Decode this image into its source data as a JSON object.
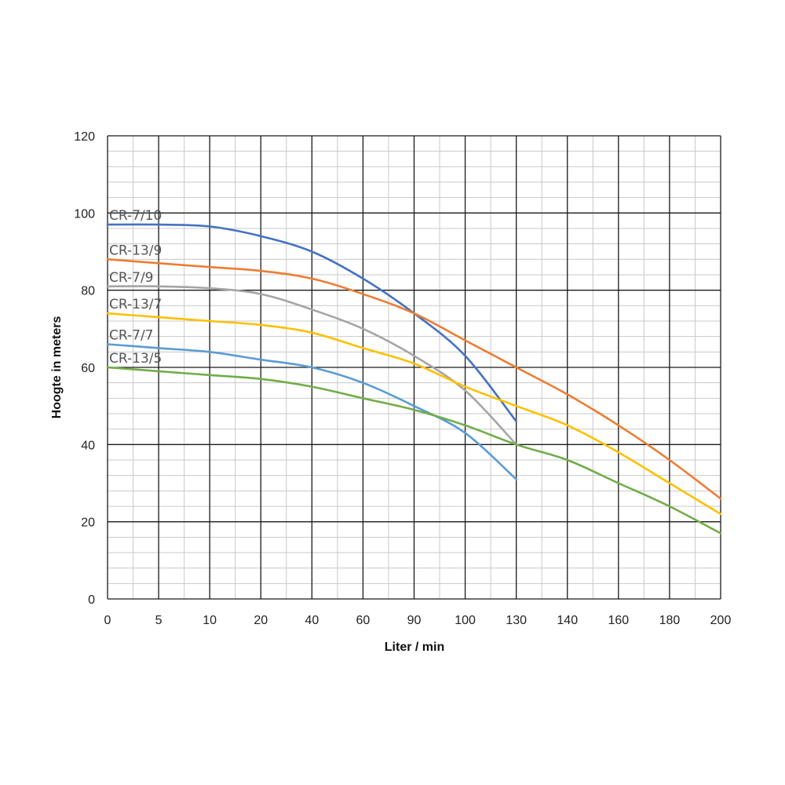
{
  "chart_data": {
    "type": "line",
    "title": "",
    "xlabel": "Liter / min",
    "ylabel": "Hoogte in meters",
    "x_categories": [
      "0",
      "5",
      "10",
      "20",
      "40",
      "60",
      "90",
      "100",
      "130",
      "140",
      "160",
      "180",
      "200"
    ],
    "ylim": [
      0,
      120
    ],
    "y_ticks": [
      "0",
      "20",
      "40",
      "60",
      "80",
      "100",
      "120"
    ],
    "grid": true,
    "legend": "inline labels at left",
    "series": [
      {
        "name": "CR-7/10",
        "color": "#4472C4",
        "points": [
          [
            0,
            97
          ],
          [
            1,
            97
          ],
          [
            2,
            96.5
          ],
          [
            3,
            94
          ],
          [
            4,
            90
          ],
          [
            5,
            83
          ],
          [
            6,
            74
          ],
          [
            7,
            63
          ],
          [
            8,
            46
          ]
        ]
      },
      {
        "name": "CR-13/9",
        "color": "#ED7D31",
        "points": [
          [
            0,
            88
          ],
          [
            1,
            87
          ],
          [
            2,
            86
          ],
          [
            3,
            85
          ],
          [
            4,
            83
          ],
          [
            5,
            79
          ],
          [
            6,
            74
          ],
          [
            7,
            67
          ],
          [
            8,
            60
          ],
          [
            9,
            53
          ],
          [
            10,
            45
          ],
          [
            11,
            36
          ],
          [
            12,
            26
          ]
        ]
      },
      {
        "name": "CR-7/9",
        "color": "#A5A5A5",
        "points": [
          [
            0,
            81
          ],
          [
            1,
            81
          ],
          [
            2,
            80.5
          ],
          [
            3,
            79
          ],
          [
            4,
            75
          ],
          [
            5,
            70
          ],
          [
            6,
            63
          ],
          [
            7,
            54
          ],
          [
            8,
            40
          ]
        ]
      },
      {
        "name": "CR-13/7",
        "color": "#FFC000",
        "points": [
          [
            0,
            74
          ],
          [
            1,
            73
          ],
          [
            2,
            72
          ],
          [
            3,
            71
          ],
          [
            4,
            69
          ],
          [
            5,
            65
          ],
          [
            6,
            61
          ],
          [
            7,
            55
          ],
          [
            8,
            50
          ],
          [
            9,
            45
          ],
          [
            10,
            38
          ],
          [
            11,
            30
          ],
          [
            12,
            22
          ]
        ]
      },
      {
        "name": "CR-7/7",
        "color": "#5B9BD5",
        "points": [
          [
            0,
            66
          ],
          [
            1,
            65
          ],
          [
            2,
            64
          ],
          [
            3,
            62
          ],
          [
            4,
            60
          ],
          [
            5,
            56
          ],
          [
            6,
            50
          ],
          [
            7,
            43
          ],
          [
            8,
            31
          ]
        ]
      },
      {
        "name": "CR-13/5",
        "color": "#70AD47",
        "points": [
          [
            0,
            60
          ],
          [
            1,
            59
          ],
          [
            2,
            58
          ],
          [
            3,
            57
          ],
          [
            4,
            55
          ],
          [
            5,
            52
          ],
          [
            6,
            49
          ],
          [
            7,
            45
          ],
          [
            8,
            40
          ],
          [
            9,
            36
          ],
          [
            10,
            30
          ],
          [
            11,
            24
          ],
          [
            12,
            17
          ]
        ]
      }
    ]
  }
}
